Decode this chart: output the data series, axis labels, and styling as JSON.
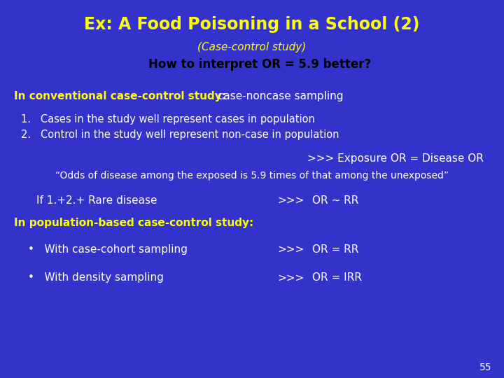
{
  "bg_color": "#3333CC",
  "title": "Ex: A Food Poisoning in a School (2)",
  "subtitle": "(Case-control study)",
  "highlight_text": "How to interpret OR = 5.9 better?",
  "highlight_bg": "#FFFF00",
  "highlight_text_color": "#000000",
  "title_color": "#FFFF00",
  "subtitle_color": "#FFFF00",
  "yellow": "#FFFF00",
  "white": "#FFFFFF",
  "line1_bold": "In conventional case-control study:",
  "line1_normal": " case-noncase sampling",
  "item1": "1.   Cases in the study well represent cases in population",
  "item2": "2.   Control in the study well represent non-case in population",
  "exposure_line": ">>> Exposure OR = Disease OR",
  "quote_line": "“Odds of disease among the exposed is 5.9 times of that among the unexposed”",
  "rare_left": "If 1.+2.+ Rare disease",
  "rare_mid": ">>>",
  "rare_right": "OR ~ RR",
  "pop_bold": "In population-based case-control study:",
  "bullet1_left": "•   With case-cohort sampling",
  "bullet1_mid": ">>>",
  "bullet1_right": "OR = RR",
  "bullet2_left": "•   With density sampling",
  "bullet2_mid": ">>>",
  "bullet2_right": "OR = IRR",
  "page_num": "55"
}
